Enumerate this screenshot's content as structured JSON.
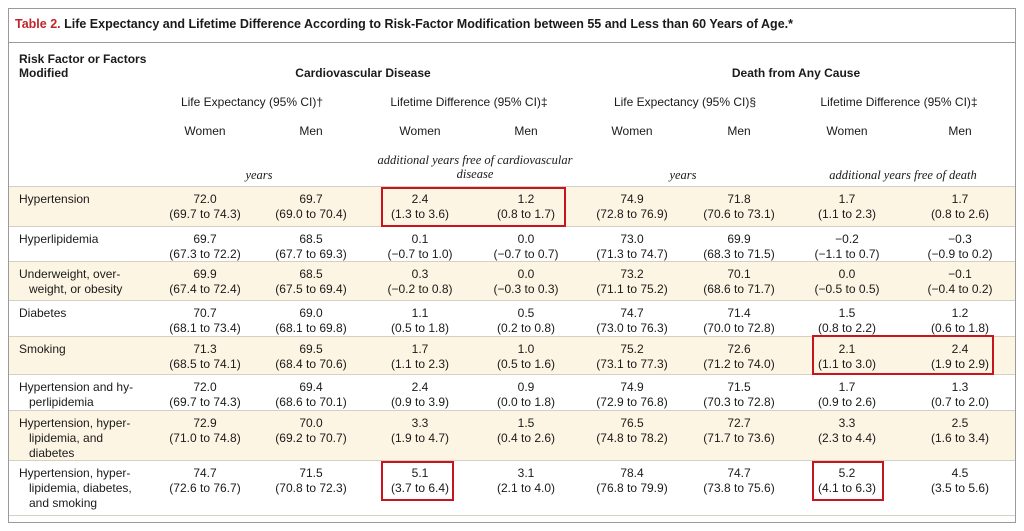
{
  "title": {
    "label": "Table 2.",
    "text": " Life Expectancy and Lifetime Difference According to Risk-Factor Modification between 55 and Less than 60 Years of Age.*"
  },
  "header": {
    "risk_col": [
      "Risk Factor or Factors",
      "Modified"
    ],
    "group_cvd": "Cardiovascular Disease",
    "group_death": "Death from Any Cause",
    "sub_le_cvd": "Life Expectancy (95% CI)†",
    "sub_ld_cvd": "Lifetime Difference (95% CI)‡",
    "sub_le_death": "Life Expectancy (95% CI)§",
    "sub_ld_death": "Lifetime Difference (95% CI)‡",
    "women": "Women",
    "men": "Men",
    "unit_years_cvd": "years",
    "unit_add_cvd": [
      "additional years free of cardiovascular",
      "disease"
    ],
    "unit_years_death": "years",
    "unit_add_death": "additional years free of death"
  },
  "rows": [
    {
      "label": [
        "Hypertension"
      ],
      "cells": [
        [
          "72.0",
          "(69.7 to 74.3)"
        ],
        [
          "69.7",
          "(69.0 to 70.4)"
        ],
        [
          "2.4",
          "(1.3 to 3.6)"
        ],
        [
          "1.2",
          "(0.8 to 1.7)"
        ],
        [
          "74.9",
          "(72.8 to 76.9)"
        ],
        [
          "71.8",
          "(70.6 to 73.1)"
        ],
        [
          "1.7",
          "(1.1 to 2.3)"
        ],
        [
          "1.7",
          "(0.8 to 2.6)"
        ]
      ]
    },
    {
      "label": [
        "Hyperlipidemia"
      ],
      "cells": [
        [
          "69.7",
          "(67.3 to 72.2)"
        ],
        [
          "68.5",
          "(67.7 to 69.3)"
        ],
        [
          "0.1",
          "(−0.7 to 1.0)"
        ],
        [
          "0.0",
          "(−0.7 to 0.7)"
        ],
        [
          "73.0",
          "(71.3 to 74.7)"
        ],
        [
          "69.9",
          "(68.3 to 71.5)"
        ],
        [
          "−0.2",
          "(−1.1 to 0.7)"
        ],
        [
          "−0.3",
          "(−0.9 to 0.2)"
        ]
      ]
    },
    {
      "label": [
        "Underweight, over-",
        "weight, or obesity"
      ],
      "cells": [
        [
          "69.9",
          "(67.4 to 72.4)"
        ],
        [
          "68.5",
          "(67.5 to 69.4)"
        ],
        [
          "0.3",
          "(−0.2 to 0.8)"
        ],
        [
          "0.0",
          "(−0.3 to 0.3)"
        ],
        [
          "73.2",
          "(71.1 to 75.2)"
        ],
        [
          "70.1",
          "(68.6 to 71.7)"
        ],
        [
          "0.0",
          "(−0.5 to 0.5)"
        ],
        [
          "−0.1",
          "(−0.4 to 0.2)"
        ]
      ]
    },
    {
      "label": [
        "Diabetes"
      ],
      "cells": [
        [
          "70.7",
          "(68.1 to 73.4)"
        ],
        [
          "69.0",
          "(68.1 to 69.8)"
        ],
        [
          "1.1",
          "(0.5 to 1.8)"
        ],
        [
          "0.5",
          "(0.2 to 0.8)"
        ],
        [
          "74.7",
          "(73.0 to 76.3)"
        ],
        [
          "71.4",
          "(70.0 to 72.8)"
        ],
        [
          "1.5",
          "(0.8 to 2.2)"
        ],
        [
          "1.2",
          "(0.6 to 1.8)"
        ]
      ]
    },
    {
      "label": [
        "Smoking"
      ],
      "cells": [
        [
          "71.3",
          "(68.5 to 74.1)"
        ],
        [
          "69.5",
          "(68.4 to 70.6)"
        ],
        [
          "1.7",
          "(1.1 to 2.3)"
        ],
        [
          "1.0",
          "(0.5 to 1.6)"
        ],
        [
          "75.2",
          "(73.1 to 77.3)"
        ],
        [
          "72.6",
          "(71.2 to 74.0)"
        ],
        [
          "2.1",
          "(1.1 to 3.0)"
        ],
        [
          "2.4",
          "(1.9 to 2.9)"
        ]
      ]
    },
    {
      "label": [
        "Hypertension and hy-",
        "perlipidemia"
      ],
      "cells": [
        [
          "72.0",
          "(69.7 to 74.3)"
        ],
        [
          "69.4",
          "(68.6 to 70.1)"
        ],
        [
          "2.4",
          "(0.9 to 3.9)"
        ],
        [
          "0.9",
          "(0.0 to 1.8)"
        ],
        [
          "74.9",
          "(72.9 to 76.8)"
        ],
        [
          "71.5",
          "(70.3 to 72.8)"
        ],
        [
          "1.7",
          "(0.9 to 2.6)"
        ],
        [
          "1.3",
          "(0.7 to 2.0)"
        ]
      ]
    },
    {
      "label": [
        "Hypertension, hyper-",
        "lipidemia, and",
        "diabetes"
      ],
      "cells": [
        [
          "72.9",
          "(71.0 to 74.8)"
        ],
        [
          "70.0",
          "(69.2 to 70.7)"
        ],
        [
          "3.3",
          "(1.9 to 4.7)"
        ],
        [
          "1.5",
          "(0.4 to 2.6)"
        ],
        [
          "76.5",
          "(74.8 to 78.2)"
        ],
        [
          "72.7",
          "(71.7 to 73.6)"
        ],
        [
          "3.3",
          "(2.3 to 4.4)"
        ],
        [
          "2.5",
          "(1.6 to 3.4)"
        ]
      ]
    },
    {
      "label": [
        "Hypertension, hyper-",
        "lipidemia, diabetes,",
        "and smoking"
      ],
      "cells": [
        [
          "74.7",
          "(72.6 to 76.7)"
        ],
        [
          "71.5",
          "(70.8 to 72.3)"
        ],
        [
          "5.1",
          "(3.7 to 6.4)"
        ],
        [
          "3.1",
          "(2.1 to 4.0)"
        ],
        [
          "78.4",
          "(76.8 to 79.9)"
        ],
        [
          "74.7",
          "(73.8 to 75.6)"
        ],
        [
          "5.2",
          "(4.1 to 6.3)"
        ],
        [
          "4.5",
          "(3.5 to 5.6)"
        ]
      ]
    }
  ],
  "highlight_color": "#c8141e",
  "shade_color": "#fdf5e3"
}
